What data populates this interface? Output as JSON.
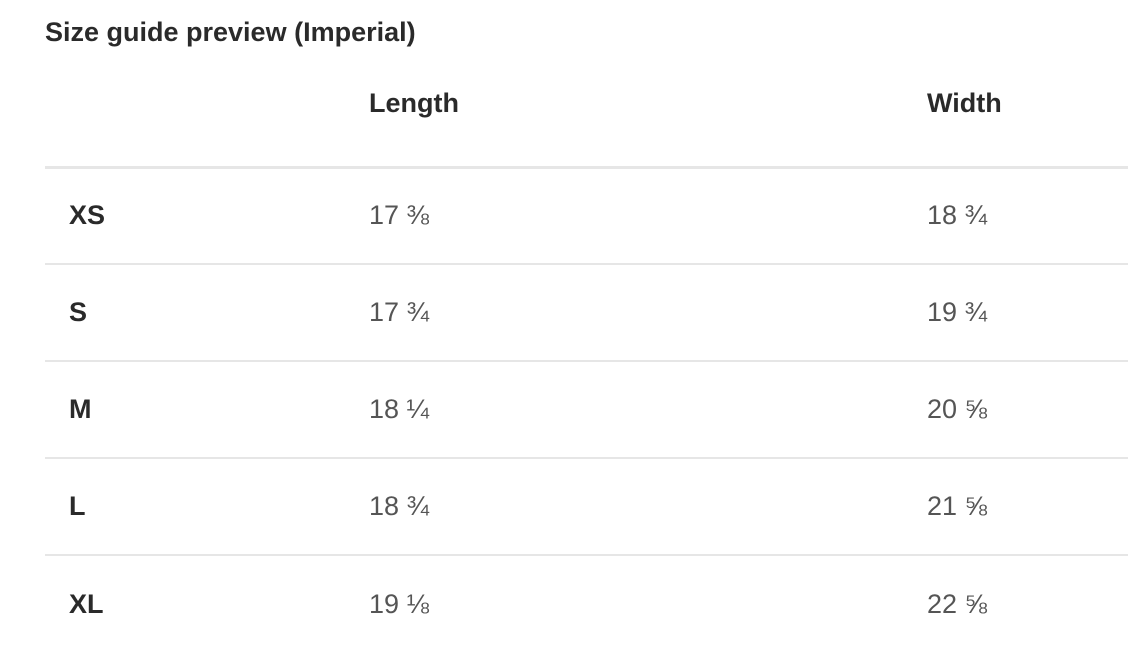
{
  "title": "Size guide preview (Imperial)",
  "columns": [
    "",
    "Length",
    "Width"
  ],
  "rows": [
    {
      "size": "XS",
      "length": "17 ⅜",
      "width": "18 ¾"
    },
    {
      "size": "S",
      "length": "17 ¾",
      "width": "19 ¾"
    },
    {
      "size": "M",
      "length": "18 ¼",
      "width": "20 ⅝"
    },
    {
      "size": "L",
      "length": "18 ¾",
      "width": "21 ⅝"
    },
    {
      "size": "XL",
      "length": "19 ⅛",
      "width": "22 ⅝"
    }
  ]
}
